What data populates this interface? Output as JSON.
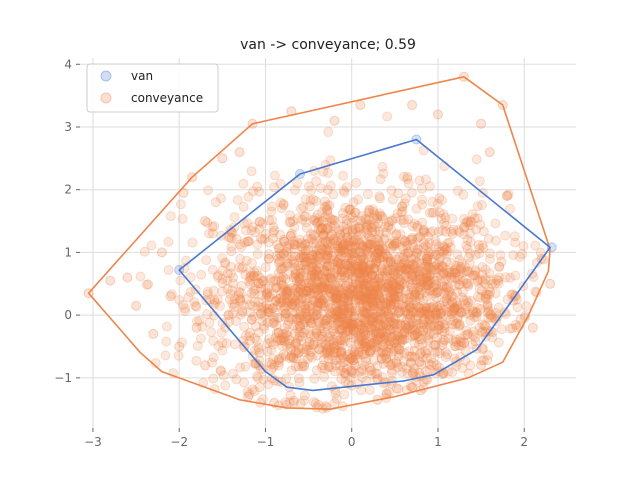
{
  "chart_data": {
    "type": "scatter",
    "title": "van -> conveyance; 0.59",
    "xlabel": "",
    "ylabel": "",
    "xlim": [
      -3.15,
      2.6
    ],
    "ylim": [
      -1.8,
      4.1
    ],
    "xticks": [
      -3,
      -2,
      -1,
      0,
      1,
      2
    ],
    "yticks": [
      -1,
      0,
      1,
      2,
      3,
      4
    ],
    "grid": true,
    "legend": {
      "position": "top-left",
      "entries": [
        "van",
        "conveyance"
      ]
    },
    "series": [
      {
        "name": "van",
        "color": "#4878d0",
        "hull": [
          [
            -2.0,
            0.72
          ],
          [
            -0.6,
            2.25
          ],
          [
            0.75,
            2.8
          ],
          [
            2.3,
            1.08
          ],
          [
            1.45,
            -0.55
          ],
          [
            0.95,
            -0.95
          ],
          [
            0.6,
            -1.05
          ],
          [
            -0.45,
            -1.2
          ],
          [
            -0.75,
            -1.15
          ],
          [
            -1.0,
            -0.9
          ]
        ],
        "points": [
          [
            -2.0,
            0.72
          ],
          [
            0.75,
            2.8
          ],
          [
            2.32,
            1.08
          ],
          [
            -0.6,
            2.25
          ]
        ]
      },
      {
        "name": "conveyance",
        "color": "#ee854a",
        "hull": [
          [
            -3.05,
            0.35
          ],
          [
            -1.85,
            2.2
          ],
          [
            -1.15,
            3.05
          ],
          [
            1.3,
            3.8
          ],
          [
            1.75,
            3.35
          ],
          [
            2.3,
            1.05
          ],
          [
            2.28,
            0.7
          ],
          [
            2.05,
            0.0
          ],
          [
            1.75,
            -0.75
          ],
          [
            1.35,
            -1.0
          ],
          [
            0.5,
            -1.3
          ],
          [
            -0.25,
            -1.5
          ],
          [
            -0.75,
            -1.48
          ],
          [
            -1.3,
            -1.35
          ],
          [
            -2.2,
            -0.9
          ],
          [
            -2.45,
            -0.6
          ]
        ],
        "core": {
          "cx": 0.1,
          "cy": 0.3,
          "sx": 0.85,
          "sy": 0.8
        },
        "points": [
          [
            -3.05,
            0.35
          ],
          [
            1.3,
            3.8
          ],
          [
            1.75,
            3.35
          ],
          [
            -1.15,
            3.05
          ],
          [
            -1.85,
            2.2
          ],
          [
            -0.7,
            3.25
          ],
          [
            0.1,
            3.35
          ],
          [
            0.7,
            3.35
          ],
          [
            1.5,
            3.05
          ],
          [
            -2.6,
            0.6
          ],
          [
            -2.8,
            0.55
          ],
          [
            -2.5,
            0.15
          ],
          [
            -2.3,
            -0.3
          ],
          [
            -2.0,
            -0.5
          ],
          [
            -1.95,
            1.95
          ],
          [
            -1.5,
            2.5
          ],
          [
            -1.3,
            2.6
          ],
          [
            -0.2,
            3.1
          ],
          [
            1.0,
            3.2
          ],
          [
            2.2,
            0.9
          ],
          [
            2.3,
            0.5
          ],
          [
            2.1,
            -0.2
          ],
          [
            1.8,
            1.9
          ],
          [
            1.6,
            2.6
          ],
          [
            -2.2,
            1.0
          ],
          [
            -2.1,
            0.3
          ],
          [
            -1.7,
            1.5
          ],
          [
            -1.8,
            -0.2
          ],
          [
            -1.7,
            -0.8
          ],
          [
            1.9,
            0.3
          ],
          [
            1.5,
            -0.8
          ],
          [
            0.8,
            -1.2
          ],
          [
            -0.3,
            -1.45
          ],
          [
            -1.2,
            -1.3
          ],
          [
            -0.9,
            -1.4
          ],
          [
            0.3,
            -1.35
          ]
        ]
      }
    ]
  }
}
